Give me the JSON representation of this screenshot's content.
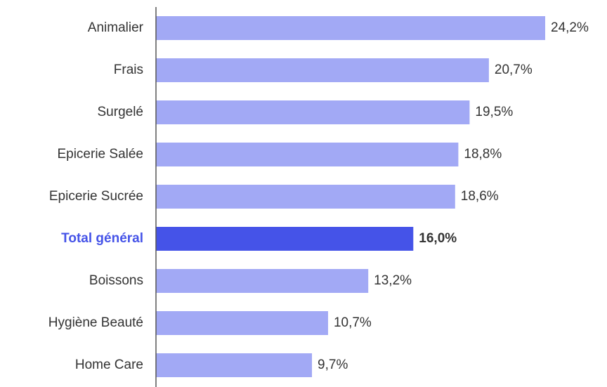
{
  "chart_data": {
    "type": "bar",
    "orientation": "horizontal",
    "categories": [
      "Animalier",
      "Frais",
      "Surgelé",
      "Epicerie Salée",
      "Epicerie Sucrée",
      "Total général",
      "Boissons",
      "Hygiène Beauté",
      "Home Care"
    ],
    "values": [
      24.2,
      20.7,
      19.5,
      18.8,
      18.6,
      16.0,
      13.2,
      10.7,
      9.7
    ],
    "value_labels": [
      "24,2%",
      "20,7%",
      "19,5%",
      "18,8%",
      "18,6%",
      "16,0%",
      "13,2%",
      "10,7%",
      "9,7%"
    ],
    "colors": [
      "#a2a9f5",
      "#a2a9f5",
      "#a2a9f5",
      "#a2a9f5",
      "#a2a9f5",
      "#4553e8",
      "#a2a9f5",
      "#a2a9f5",
      "#a2a9f5"
    ],
    "highlight": "Total général",
    "xlim": [
      0,
      28
    ]
  }
}
